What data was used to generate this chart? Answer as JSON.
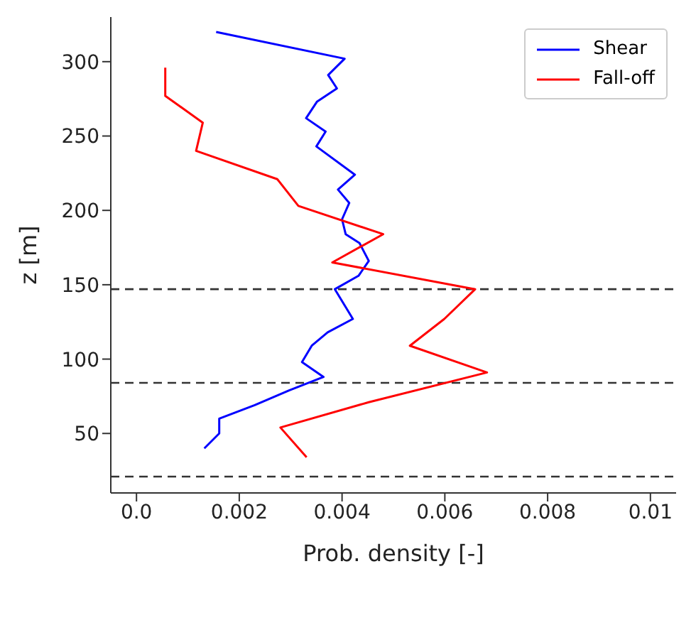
{
  "chart_data": {
    "type": "line",
    "xlabel": "Prob. density [-]",
    "ylabel": "z [m]",
    "xlim": [
      -0.0005,
      0.0105
    ],
    "ylim": [
      10,
      330
    ],
    "xticks": [
      {
        "value": 0,
        "label": "0.0"
      },
      0.002,
      0.004,
      0.006,
      0.008,
      0.01
    ],
    "yticks": [
      50,
      100,
      150,
      200,
      250,
      300
    ],
    "legend": "top right",
    "series": [
      {
        "name": "Shear",
        "color": "#0000ff",
        "x": [
          0.00155,
          0.00405,
          0.00373,
          0.0039,
          0.00351,
          0.0033,
          0.00368,
          0.0035,
          0.00425,
          0.00392,
          0.00414,
          0.004,
          0.00407,
          0.00434,
          0.00452,
          0.00432,
          0.00386,
          0.00407,
          0.00421,
          0.00372,
          0.00341,
          0.00322,
          0.00364,
          0.00297,
          0.0023,
          0.00161,
          0.00161,
          0.00132
        ],
        "values": [
          320,
          302,
          291,
          282,
          273,
          262,
          253,
          243,
          224,
          214,
          205,
          194,
          184,
          178,
          166,
          156,
          147,
          135,
          127,
          118,
          109,
          98,
          88,
          79,
          69,
          60,
          50,
          40
        ]
      },
      {
        "name": "Fall-off",
        "color": "#ff0000",
        "x": [
          0.00056,
          0.00056,
          0.00129,
          0.00116,
          0.00274,
          0.00315,
          0.0048,
          0.00381,
          0.00659,
          0.00599,
          0.00532,
          0.00682,
          0.00452,
          0.0028,
          0.00331
        ],
        "values": [
          296,
          277,
          259,
          240,
          221,
          203,
          184,
          165,
          147,
          127,
          109,
          91,
          71,
          54,
          34
        ]
      }
    ],
    "ref_lines": [
      {
        "axis": "y",
        "value": 147,
        "color": "#333333",
        "line_style": "dashed"
      },
      {
        "axis": "y",
        "value": 84,
        "color": "#333333",
        "line_style": "dashed"
      },
      {
        "axis": "y",
        "value": 21,
        "color": "#333333",
        "line_style": "dashed"
      }
    ]
  }
}
